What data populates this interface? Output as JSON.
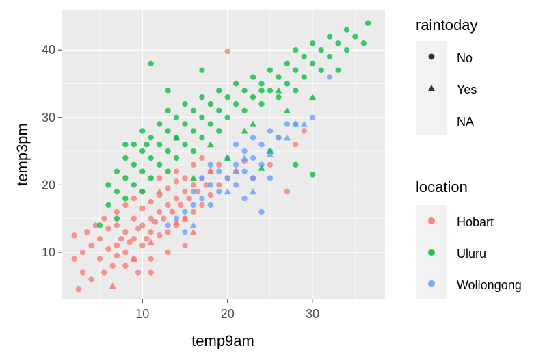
{
  "chart_data": {
    "type": "scatter",
    "xlabel": "temp9am",
    "ylabel": "temp3pm",
    "xlim": [
      0.5,
      38.5
    ],
    "ylim": [
      3,
      46
    ],
    "x_ticks": [
      10,
      20,
      30
    ],
    "y_ticks": [
      10,
      20,
      30,
      40
    ],
    "grid": true,
    "legend_position": "right",
    "legends": {
      "shape": {
        "title": "raintoday",
        "entries": [
          {
            "label": "No",
            "shape": "circle"
          },
          {
            "label": "Yes",
            "shape": "triangle"
          },
          {
            "label": "NA",
            "shape": "none"
          }
        ]
      },
      "color": {
        "title": "location",
        "entries": [
          {
            "label": "Hobart",
            "color": "#F8766D"
          },
          {
            "label": "Uluru",
            "color": "#00BA38"
          },
          {
            "label": "Wollongong",
            "color": "#619CFF"
          }
        ]
      }
    },
    "series": [
      {
        "name": "Hobart",
        "color": "#F8766D",
        "points": [
          [
            2.5,
            4.5
          ],
          [
            2,
            9
          ],
          [
            2,
            12.5
          ],
          [
            3,
            10
          ],
          [
            3.5,
            13
          ],
          [
            4,
            11
          ],
          [
            4.5,
            14
          ],
          [
            5,
            9
          ],
          [
            5,
            12
          ],
          [
            5.5,
            15
          ],
          [
            6,
            10.5
          ],
          [
            6,
            13.5
          ],
          [
            6.5,
            8
          ],
          [
            7,
            11
          ],
          [
            7,
            14
          ],
          [
            7,
            16
          ],
          [
            7.5,
            12
          ],
          [
            8,
            10
          ],
          [
            8,
            13
          ],
          [
            8,
            17
          ],
          [
            8.5,
            11.5
          ],
          [
            9,
            9
          ],
          [
            9,
            12
          ],
          [
            9,
            15
          ],
          [
            9,
            18
          ],
          [
            9.5,
            13.5
          ],
          [
            10,
            11
          ],
          [
            10,
            14
          ],
          [
            10,
            16.5
          ],
          [
            10,
            19
          ],
          [
            10.5,
            12
          ],
          [
            11,
            7
          ],
          [
            11,
            13
          ],
          [
            11,
            15
          ],
          [
            11,
            17.5
          ],
          [
            11.5,
            14.5
          ],
          [
            12,
            12.5
          ],
          [
            12,
            16
          ],
          [
            12,
            18.5
          ],
          [
            12,
            21
          ],
          [
            12.5,
            15
          ],
          [
            13,
            13
          ],
          [
            13,
            17
          ],
          [
            13,
            19.5
          ],
          [
            13.5,
            16
          ],
          [
            14,
            14
          ],
          [
            14,
            18
          ],
          [
            14,
            20.5
          ],
          [
            14,
            22
          ],
          [
            14.5,
            17
          ],
          [
            15,
            15
          ],
          [
            15,
            19
          ],
          [
            15,
            21
          ],
          [
            15.5,
            18
          ],
          [
            16,
            16
          ],
          [
            16,
            20
          ],
          [
            16,
            23
          ],
          [
            16.5,
            19
          ],
          [
            17,
            17
          ],
          [
            17,
            21
          ],
          [
            17,
            24
          ],
          [
            17.5,
            20
          ],
          [
            18,
            18.5
          ],
          [
            18,
            22
          ],
          [
            19,
            20
          ],
          [
            19,
            23
          ],
          [
            20,
            21
          ],
          [
            21,
            22
          ],
          [
            22,
            23.5
          ],
          [
            23,
            21
          ],
          [
            25,
            23
          ],
          [
            26,
            27
          ],
          [
            27,
            19
          ],
          [
            28,
            26
          ],
          [
            29,
            28
          ],
          [
            20,
            39.8
          ],
          [
            11,
            9
          ],
          [
            8,
            8
          ],
          [
            7,
            9.5
          ],
          [
            3,
            7
          ],
          [
            4,
            6
          ],
          [
            5.5,
            7
          ],
          [
            9.5,
            7
          ],
          [
            13,
            10
          ],
          [
            15,
            11
          ]
        ]
      },
      {
        "name": "Uluru",
        "color": "#00BA38",
        "points": [
          [
            5,
            14
          ],
          [
            6,
            17
          ],
          [
            6,
            20
          ],
          [
            7,
            15
          ],
          [
            7,
            19
          ],
          [
            7,
            22
          ],
          [
            8,
            18
          ],
          [
            8,
            21
          ],
          [
            8,
            24
          ],
          [
            9,
            20
          ],
          [
            9,
            23
          ],
          [
            9,
            26
          ],
          [
            10,
            19
          ],
          [
            10,
            22
          ],
          [
            10,
            25
          ],
          [
            10,
            28
          ],
          [
            11,
            21
          ],
          [
            11,
            24
          ],
          [
            11,
            27
          ],
          [
            12,
            23
          ],
          [
            12,
            26
          ],
          [
            12,
            29
          ],
          [
            13,
            22
          ],
          [
            13,
            25
          ],
          [
            13,
            28
          ],
          [
            13,
            31
          ],
          [
            14,
            24
          ],
          [
            14,
            27
          ],
          [
            14,
            30
          ],
          [
            15,
            26
          ],
          [
            15,
            29
          ],
          [
            15,
            32
          ],
          [
            16,
            25
          ],
          [
            16,
            28
          ],
          [
            16,
            31
          ],
          [
            17,
            27
          ],
          [
            17,
            30
          ],
          [
            17,
            33
          ],
          [
            18,
            29
          ],
          [
            18,
            32
          ],
          [
            19,
            28
          ],
          [
            19,
            31
          ],
          [
            19,
            34
          ],
          [
            20,
            30
          ],
          [
            20,
            33
          ],
          [
            21,
            32
          ],
          [
            21,
            35
          ],
          [
            22,
            31
          ],
          [
            22,
            34
          ],
          [
            23,
            33
          ],
          [
            23,
            36
          ],
          [
            24,
            35
          ],
          [
            24,
            32
          ],
          [
            25,
            34
          ],
          [
            25,
            37
          ],
          [
            26,
            33
          ],
          [
            26,
            36
          ],
          [
            27,
            35
          ],
          [
            27,
            38
          ],
          [
            28,
            34
          ],
          [
            28,
            37
          ],
          [
            28,
            40
          ],
          [
            29,
            36
          ],
          [
            29,
            39
          ],
          [
            30,
            38
          ],
          [
            30,
            41
          ],
          [
            31,
            37
          ],
          [
            31,
            40
          ],
          [
            32,
            39
          ],
          [
            32,
            42
          ],
          [
            33,
            41
          ],
          [
            34,
            40
          ],
          [
            34,
            43
          ],
          [
            35,
            42
          ],
          [
            36,
            41
          ],
          [
            36.5,
            44
          ],
          [
            30,
            21.5
          ],
          [
            28,
            23
          ],
          [
            24,
            34
          ],
          [
            33,
            37
          ],
          [
            11,
            38
          ],
          [
            17,
            37
          ],
          [
            13,
            34
          ],
          [
            8,
            26
          ],
          [
            10.5,
            26
          ]
        ]
      },
      {
        "name": "Wollongong",
        "color": "#619CFF",
        "points": [
          [
            13,
            14
          ],
          [
            14,
            15
          ],
          [
            15,
            16
          ],
          [
            16,
            17
          ],
          [
            16,
            19
          ],
          [
            17,
            18
          ],
          [
            17,
            21
          ],
          [
            18,
            20
          ],
          [
            18,
            23
          ],
          [
            19,
            19
          ],
          [
            19,
            22
          ],
          [
            20,
            21
          ],
          [
            20,
            24
          ],
          [
            21,
            20
          ],
          [
            21,
            23
          ],
          [
            21,
            26
          ],
          [
            22,
            22
          ],
          [
            22,
            25
          ],
          [
            23,
            21
          ],
          [
            23,
            24
          ],
          [
            23,
            27
          ],
          [
            24,
            23
          ],
          [
            24,
            26
          ],
          [
            25,
            25
          ],
          [
            25,
            28
          ],
          [
            26,
            27
          ],
          [
            27,
            29
          ],
          [
            28,
            29
          ],
          [
            30,
            30
          ],
          [
            32,
            36
          ],
          [
            15,
            13
          ],
          [
            18,
            17
          ],
          [
            22,
            18
          ],
          [
            24,
            16
          ],
          [
            25,
            21
          ]
        ]
      }
    ],
    "triangles": [
      {
        "series": "Hobart",
        "points": [
          [
            6.5,
            5
          ],
          [
            9,
            9
          ],
          [
            11,
            11.5
          ],
          [
            14,
            14.5
          ],
          [
            16,
            13
          ],
          [
            12,
            19
          ],
          [
            18,
            22
          ],
          [
            15,
            15
          ]
        ]
      },
      {
        "series": "Uluru",
        "points": [
          [
            20,
            24
          ],
          [
            22,
            28
          ],
          [
            25,
            25
          ],
          [
            27,
            31
          ],
          [
            18,
            26
          ],
          [
            23,
            29
          ],
          [
            30,
            33
          ],
          [
            14,
            27
          ],
          [
            16,
            21
          ],
          [
            26,
            34
          ],
          [
            24,
            22.5
          ]
        ]
      },
      {
        "series": "Wollongong",
        "points": [
          [
            25,
            24.5
          ],
          [
            28,
            29
          ],
          [
            29,
            29
          ],
          [
            20,
            19
          ],
          [
            21,
            22
          ],
          [
            23,
            19
          ],
          [
            27,
            27
          ],
          [
            16,
            14
          ],
          [
            22,
            24
          ]
        ]
      }
    ]
  }
}
